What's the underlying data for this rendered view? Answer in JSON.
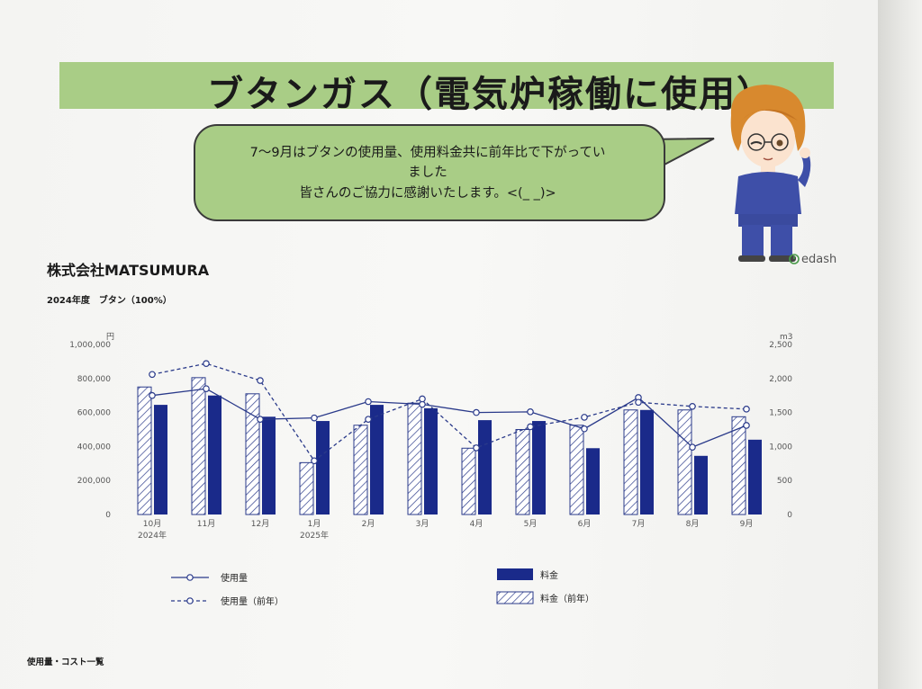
{
  "header": {
    "title": "ブタンガス（電気炉稼働に使用）"
  },
  "bubble": {
    "line1": "7～9月はブタンの使用量、使用料金共に前年比で下がってい",
    "line2": "ました",
    "line3": "皆さんのご協力に感謝いたします。<(_ _)>"
  },
  "company": "株式会社MATSUMURA",
  "subtitle": "2024年度　ブタン（100%）",
  "brand": "edash",
  "footer": "使用量・コスト一覧",
  "colors": {
    "band": "#a9cd86",
    "bar": "#1a2a8a",
    "line": "#2a3a8a"
  },
  "chart_data": {
    "type": "bar",
    "categories": [
      "10月",
      "11月",
      "12月",
      "1月",
      "2月",
      "3月",
      "4月",
      "5月",
      "6月",
      "7月",
      "8月",
      "9月"
    ],
    "category_sublabels": [
      "2024年",
      "",
      "",
      "2025年",
      "",
      "",
      "",
      "",
      "",
      "",
      "",
      ""
    ],
    "y_left": {
      "unit": "円",
      "ticks": [
        "1,000,000",
        "800,000",
        "600,000",
        "400,000",
        "200,000",
        "0"
      ],
      "range": [
        0,
        1000000
      ]
    },
    "y_right": {
      "unit": "m3",
      "ticks": [
        "2,500",
        "2,000",
        "1,500",
        "1,000",
        "500",
        "0"
      ],
      "range": [
        0,
        2500
      ]
    },
    "series": [
      {
        "name": "料金（前年）",
        "kind": "bar",
        "style": "hatched",
        "axis": "left",
        "values": [
          750000,
          805000,
          710000,
          305000,
          525000,
          655000,
          390000,
          500000,
          525000,
          615000,
          615000,
          575000
        ]
      },
      {
        "name": "料金",
        "kind": "bar",
        "style": "solid",
        "axis": "left",
        "values": [
          645000,
          700000,
          575000,
          550000,
          645000,
          625000,
          555000,
          550000,
          390000,
          615000,
          345000,
          440000
        ]
      },
      {
        "name": "使用量",
        "kind": "line",
        "style": "solid",
        "axis": "right",
        "values": [
          1750,
          1850,
          1400,
          1420,
          1660,
          1620,
          1500,
          1510,
          1260,
          1720,
          990,
          1310
        ]
      },
      {
        "name": "使用量（前年）",
        "kind": "line",
        "style": "dashed",
        "axis": "right",
        "values": [
          2060,
          2220,
          1970,
          790,
          1400,
          1700,
          980,
          1290,
          1430,
          1650,
          1590,
          1550
        ]
      }
    ],
    "legend": [
      "使用量",
      "使用量（前年）",
      "料金",
      "料金（前年）"
    ],
    "legend_position": "bottom",
    "grid": false
  }
}
